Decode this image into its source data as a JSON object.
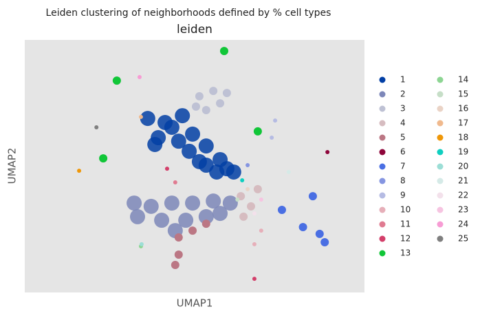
{
  "chart_data": {
    "type": "scatter",
    "suptitle": "Leiden clustering of neighborhoods defined by % cell types",
    "title": "leiden",
    "x_label": "UMAP1",
    "y_label": "UMAP2",
    "xlim": [
      0,
      100
    ],
    "ylim": [
      0,
      100
    ],
    "series": [
      {
        "name": "1",
        "color": "#023fa5",
        "x": [
          36.2,
          41.3,
          46.4,
          49.4,
          53.4,
          57.5,
          61.5,
          39.3,
          45.3,
          51.4,
          56.5,
          38.3,
          43.3,
          48.4,
          53.4,
          59.5
        ],
        "values": [
          68.9,
          67.3,
          70.0,
          62.7,
          58.0,
          52.6,
          47.7,
          61.3,
          59.9,
          51.8,
          47.7,
          58.6,
          65.4,
          55.9,
          50.4,
          49.0
        ]
      },
      {
        "name": "2",
        "color": "#7d87b9",
        "x": [
          32.2,
          37.2,
          43.3,
          49.4,
          55.5,
          60.5,
          33.2,
          40.3,
          47.4,
          53.4,
          44.3,
          57.5
        ],
        "values": [
          35.4,
          34.1,
          35.4,
          35.4,
          36.2,
          35.4,
          30.0,
          28.6,
          28.6,
          30.0,
          24.5,
          31.3
        ]
      },
      {
        "name": "3",
        "color": "#bec1d4",
        "x": [
          51.4,
          55.5,
          59.5,
          53.4,
          57.5,
          50.4
        ],
        "values": [
          77.7,
          79.8,
          79.0,
          72.2,
          74.9,
          73.6
        ]
      },
      {
        "name": "4",
        "color": "#d6bcc0",
        "x": [
          63.6,
          66.6,
          64.4,
          68.6
        ],
        "values": [
          38.1,
          34.1,
          30.0,
          40.9
        ]
      },
      {
        "name": "5",
        "color": "#bb7784",
        "x": [
          45.3,
          49.4,
          45.3,
          53.4,
          44.3
        ],
        "values": [
          21.8,
          24.5,
          15.0,
          27.2,
          10.9
        ]
      },
      {
        "name": "6",
        "color": "#8e063b",
        "x": [
          89.1
        ],
        "values": [
          55.6
        ]
      },
      {
        "name": "7",
        "color": "#4a6fe3",
        "x": [
          75.7,
          81.9,
          86.8,
          88.3,
          84.8
        ],
        "values": [
          32.7,
          25.9,
          23.2,
          19.9,
          38.1
        ]
      },
      {
        "name": "8",
        "color": "#8595e1",
        "x": [
          65.6
        ],
        "values": [
          50.4
        ]
      },
      {
        "name": "9",
        "color": "#b5bbe3",
        "x": [
          72.7,
          73.7
        ],
        "values": [
          61.3,
          68.1
        ]
      },
      {
        "name": "10",
        "color": "#e6afb9",
        "x": [
          67.6,
          69.6
        ],
        "values": [
          19.1,
          24.5
        ]
      },
      {
        "name": "11",
        "color": "#e07b91",
        "x": [
          44.3
        ],
        "values": [
          43.6
        ]
      },
      {
        "name": "12",
        "color": "#d33f6a",
        "x": [
          41.9,
          67.6
        ],
        "values": [
          49.0,
          5.4
        ]
      },
      {
        "name": "13",
        "color": "#11c638",
        "x": [
          23.1,
          58.7,
          68.6,
          27.1
        ],
        "values": [
          53.1,
          95.6,
          63.8,
          83.9
        ]
      },
      {
        "name": "14",
        "color": "#8dd593",
        "x": [
          34.2
        ],
        "values": [
          18.3
        ]
      },
      {
        "name": "15",
        "color": "#c6dec7",
        "x": [
          62.6
        ],
        "values": [
          36.8
        ]
      },
      {
        "name": "16",
        "color": "#ead3c6",
        "x": [
          65.6
        ],
        "values": [
          40.9
        ]
      },
      {
        "name": "17",
        "color": "#f0b98d",
        "x": [
          34.2
        ],
        "values": [
          69.5
        ]
      },
      {
        "name": "18",
        "color": "#ef9708",
        "x": [
          16.0
        ],
        "values": [
          48.2
        ]
      },
      {
        "name": "19",
        "color": "#0fcfc0",
        "x": [
          64.0
        ],
        "values": [
          44.4
        ]
      },
      {
        "name": "20",
        "color": "#9cded6",
        "x": [
          34.4
        ],
        "values": [
          19.1
        ]
      },
      {
        "name": "21",
        "color": "#d5eae7",
        "x": [
          77.7
        ],
        "values": [
          47.7
        ]
      },
      {
        "name": "22",
        "color": "#f3e1eb",
        "x": [
          67.6
        ],
        "values": [
          31.3
        ]
      },
      {
        "name": "23",
        "color": "#f6c4e1",
        "x": [
          69.6
        ],
        "values": [
          36.8
        ]
      },
      {
        "name": "24",
        "color": "#f79cd4",
        "x": [
          33.8
        ],
        "values": [
          85.3
        ]
      },
      {
        "name": "25",
        "color": "#7f7f7f",
        "x": [
          21.1
        ],
        "values": [
          65.4
        ]
      }
    ]
  }
}
